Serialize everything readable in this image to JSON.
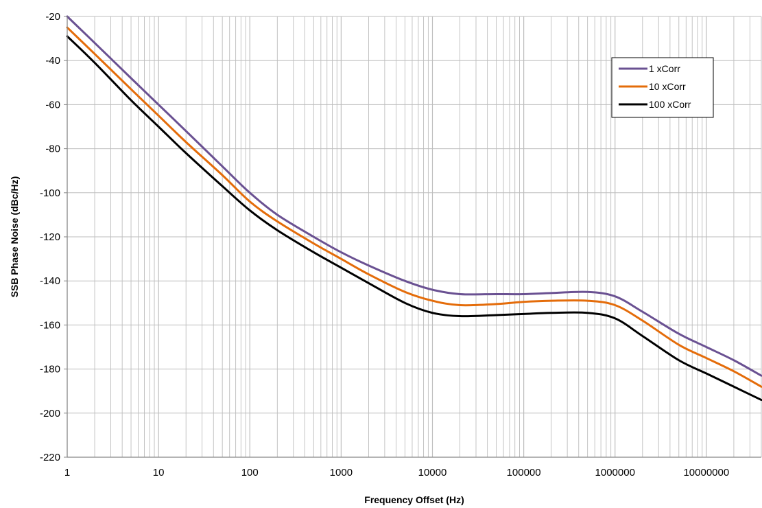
{
  "chart_data": {
    "type": "line",
    "xscale": "log",
    "xlabel": "Frequency Offset (Hz)",
    "ylabel": "SSB Phase Noise (dBc/Hz)",
    "xlim": [
      1,
      40000000
    ],
    "ylim": [
      -220,
      -20
    ],
    "x_ticks": [
      "1",
      "10",
      "100",
      "1000",
      "10000",
      "100000",
      "1000000",
      "10000000"
    ],
    "y_ticks": [
      "-20",
      "-40",
      "-60",
      "-80",
      "-100",
      "-120",
      "-140",
      "-160",
      "-180",
      "-200",
      "-220"
    ],
    "grid": true,
    "legend_position": "top-right",
    "series": [
      {
        "name": "1 xCorr",
        "color": "#6a5192",
        "x": [
          1,
          2,
          5,
          10,
          20,
          50,
          100,
          200,
          500,
          1000,
          2000,
          5000,
          10000,
          20000,
          50000,
          100000,
          200000,
          500000,
          1000000,
          2000000,
          5000000,
          10000000,
          20000000,
          40000000
        ],
        "y": [
          -20,
          -32,
          -48,
          -60,
          -72,
          -88,
          -100,
          -110,
          -120,
          -127,
          -133,
          -140,
          -144,
          -146,
          -146,
          -146,
          -145.5,
          -145,
          -147,
          -154,
          -164,
          -170,
          -176,
          -183
        ]
      },
      {
        "name": "10 xCorr",
        "color": "#e46c0a",
        "x": [
          1,
          2,
          5,
          10,
          20,
          50,
          100,
          200,
          500,
          1000,
          2000,
          5000,
          10000,
          20000,
          50000,
          100000,
          200000,
          500000,
          1000000,
          2000000,
          5000000,
          10000000,
          20000000,
          40000000
        ],
        "y": [
          -25,
          -37,
          -53,
          -65,
          -77,
          -92,
          -104,
          -113,
          -123,
          -130,
          -137,
          -145,
          -149,
          -151,
          -150.5,
          -149.5,
          -149,
          -149,
          -151,
          -158,
          -169,
          -175,
          -181,
          -188
        ]
      },
      {
        "name": "100 xCorr",
        "color": "#000000",
        "x": [
          1,
          2,
          5,
          10,
          20,
          50,
          100,
          200,
          500,
          1000,
          2000,
          5000,
          10000,
          20000,
          50000,
          100000,
          200000,
          500000,
          1000000,
          2000000,
          5000000,
          10000000,
          20000000,
          40000000
        ],
        "y": [
          -29,
          -41,
          -58,
          -70,
          -82,
          -97,
          -108,
          -117,
          -127,
          -134,
          -141,
          -150,
          -154.5,
          -156,
          -155.5,
          -155,
          -154.5,
          -154.5,
          -157,
          -165,
          -176,
          -182,
          -188,
          -194
        ]
      }
    ]
  }
}
